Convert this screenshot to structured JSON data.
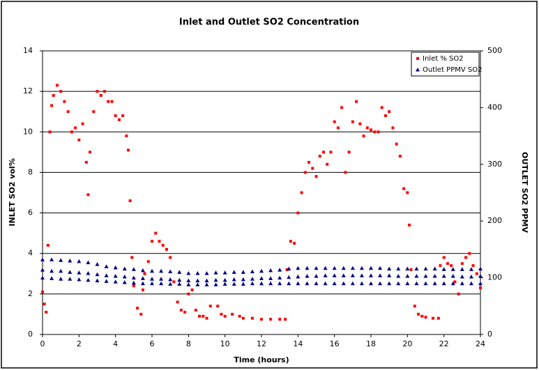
{
  "chart_data": {
    "type": "scatter",
    "title": "Inlet and Outlet SO2 Concentration",
    "x_label": "Time (hours)",
    "y_label": "INLET SO2 vol%",
    "y2_label": "OUTLET SO2 PPMV",
    "xlim": [
      0,
      24
    ],
    "xticks": [
      0,
      2,
      4,
      6,
      8,
      10,
      12,
      14,
      16,
      18,
      20,
      22,
      24
    ],
    "ylim": [
      0,
      14
    ],
    "yticks": [
      0,
      2,
      4,
      6,
      8,
      10,
      12,
      14
    ],
    "y2lim": [
      0,
      500
    ],
    "y2ticks": [
      0,
      100,
      200,
      300,
      400,
      500
    ],
    "grid": true,
    "legend": "upper right",
    "series": [
      {
        "name": "Inlet % SO2",
        "color": "#ff0000",
        "marker": "square",
        "x": [
          0,
          0.1,
          0.2,
          0.3,
          0.4,
          0.5,
          0.6,
          0.8,
          1.0,
          1.2,
          1.4,
          1.6,
          1.8,
          2.0,
          2.2,
          2.4,
          2.5,
          2.6,
          2.8,
          3.0,
          3.2,
          3.4,
          3.6,
          3.8,
          4.0,
          4.2,
          4.4,
          4.6,
          4.7,
          4.8,
          4.9,
          5.0,
          5.2,
          5.4,
          5.5,
          5.6,
          5.8,
          6.0,
          6.2,
          6.4,
          6.6,
          6.8,
          7.0,
          7.2,
          7.4,
          7.6,
          7.8,
          8.0,
          8.2,
          8.4,
          8.6,
          8.8,
          9.0,
          9.2,
          9.6,
          9.8,
          10,
          10.4,
          10.8,
          11,
          11.5,
          12,
          12.5,
          13,
          13.3,
          13.4,
          13.6,
          13.8,
          14.0,
          14.2,
          14.4,
          14.6,
          14.8,
          15.0,
          15.2,
          15.4,
          15.6,
          15.8,
          16.0,
          16.2,
          16.4,
          16.6,
          16.8,
          17.0,
          17.2,
          17.4,
          17.6,
          17.8,
          18.0,
          18.2,
          18.4,
          18.6,
          18.8,
          19.0,
          19.2,
          19.4,
          19.6,
          19.8,
          20.0,
          20.1,
          20.2,
          20.4,
          20.6,
          20.8,
          21.0,
          21.4,
          21.7,
          21.8,
          22,
          22.2,
          22.4,
          22.6,
          22.8,
          23.0,
          23.2,
          23.4,
          23.6,
          23.8,
          24
        ],
        "values": [
          2.1,
          1.5,
          1.1,
          4.4,
          10,
          11.3,
          11.8,
          12.3,
          12.0,
          11.5,
          11.0,
          10.0,
          10.2,
          9.6,
          10.4,
          8.5,
          6.9,
          9.0,
          11.0,
          12.0,
          11.8,
          12.0,
          11.5,
          11.5,
          10.8,
          10.6,
          10.8,
          9.8,
          9.1,
          6.6,
          3.8,
          2.4,
          1.3,
          1.0,
          2.2,
          3.0,
          3.6,
          4.6,
          5.0,
          4.6,
          4.4,
          4.2,
          3.8,
          2.6,
          1.6,
          1.2,
          1.1,
          2.0,
          2.2,
          1.2,
          0.9,
          0.9,
          0.8,
          1.4,
          1.4,
          1.0,
          0.9,
          1.0,
          0.9,
          0.8,
          0.8,
          0.75,
          0.75,
          0.75,
          0.75,
          3.2,
          4.6,
          4.5,
          6.0,
          7.0,
          8.0,
          8.5,
          8.2,
          7.8,
          8.8,
          9.0,
          8.4,
          9.0,
          10.5,
          10.2,
          11.2,
          8.0,
          9.0,
          10.5,
          11.5,
          10.4,
          9.8,
          10.2,
          10.1,
          10.0,
          10.0,
          11.2,
          10.8,
          11.0,
          10.2,
          9.4,
          8.8,
          7.2,
          7.0,
          5.4,
          3.2,
          1.4,
          1.0,
          0.9,
          0.85,
          0.8,
          0.8,
          3.4,
          3.8,
          3.5,
          3.4,
          2.6,
          2.0,
          3.5,
          3.8,
          4.0,
          3.4,
          3.0,
          2.3
        ]
      },
      {
        "name": "Outlet PPMV SO2",
        "color": "#000080",
        "marker": "triangle",
        "axis": "y2",
        "x": [
          0,
          0.5,
          1,
          1.5,
          2,
          2.5,
          3,
          3.5,
          4,
          4.5,
          5,
          5.5,
          6,
          6.5,
          7,
          7.5,
          8,
          8.5,
          9,
          9.5,
          10,
          10.5,
          11,
          11.5,
          12,
          12.5,
          13,
          13.5,
          14,
          14.5,
          15,
          15.5,
          16,
          16.5,
          17,
          17.5,
          18,
          18.5,
          19,
          19.5,
          20,
          20.5,
          21,
          21.5,
          22,
          22.5,
          23,
          23.5,
          24,
          0,
          0.5,
          1,
          1.5,
          2,
          2.5,
          3,
          3.5,
          4,
          4.5,
          5,
          5.5,
          6,
          6.5,
          7,
          7.5,
          8,
          8.5,
          9,
          9.5,
          10,
          10.5,
          11,
          11.5,
          12,
          12.5,
          13,
          13.5,
          14,
          14.5,
          15,
          15.5,
          16,
          16.5,
          17,
          17.5,
          18,
          18.5,
          19,
          19.5,
          20,
          20.5,
          21,
          21.5,
          22,
          22.5,
          23,
          23.5,
          24,
          0,
          0.5,
          1,
          1.5,
          2,
          2.5,
          3,
          3.5,
          4,
          4.5,
          5,
          5.5,
          6,
          6.5,
          7,
          7.5,
          8,
          8.5,
          9,
          9.5,
          10,
          10.5,
          11,
          11.5,
          12,
          12.5,
          13,
          13.5,
          14,
          14.5,
          15,
          15.5,
          16,
          16.5,
          17,
          17.5,
          18,
          18.5,
          19,
          19.5,
          20,
          20.5,
          21,
          21.5,
          22,
          22.5,
          23,
          23.5,
          24
        ],
        "values": [
          132,
          132,
          131,
          130,
          129,
          127,
          124,
          120,
          118,
          116,
          115,
          113,
          112,
          112,
          111,
          110,
          108,
          108,
          108,
          109,
          109,
          110,
          110,
          111,
          112,
          113,
          114,
          116,
          117,
          117,
          117,
          117,
          117,
          117,
          117,
          117,
          117,
          117,
          116,
          116,
          116,
          116,
          116,
          116,
          115,
          115,
          115,
          115,
          116,
          114,
          112,
          112,
          110,
          109,
          108,
          106,
          104,
          103,
          102,
          100,
          99,
          98,
          98,
          97,
          96,
          95,
          95,
          95,
          96,
          96,
          97,
          97,
          98,
          99,
          99,
          100,
          101,
          102,
          103,
          103,
          104,
          104,
          104,
          104,
          104,
          104,
          104,
          104,
          103,
          103,
          103,
          103,
          103,
          103,
          103,
          102,
          102,
          103,
          100,
          99,
          98,
          98,
          97,
          96,
          95,
          94,
          93,
          92,
          91,
          90,
          90,
          90,
          89,
          89,
          88,
          88,
          88,
          88,
          89,
          89,
          89,
          90,
          90,
          90,
          90,
          90,
          90,
          90,
          90,
          90,
          90,
          90,
          90,
          90,
          90,
          90,
          90,
          90,
          90,
          90,
          90,
          90,
          90,
          90,
          90,
          90,
          90
        ]
      }
    ]
  }
}
